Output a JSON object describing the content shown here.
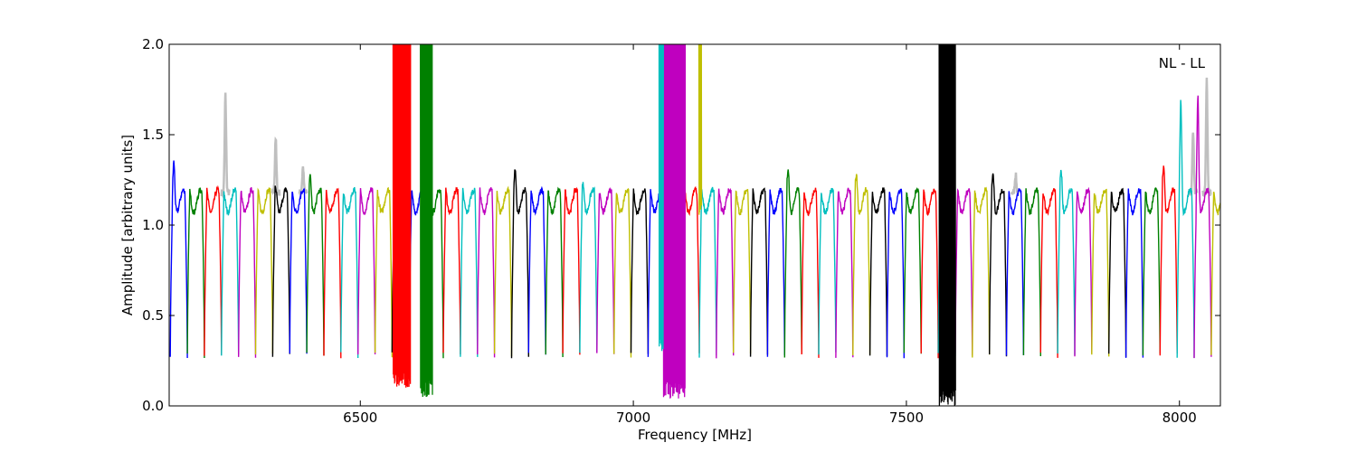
{
  "chart_data": {
    "type": "line",
    "title": "",
    "xlabel": "Frequency [MHz]",
    "ylabel": "Amplitude [arbitrary units]",
    "annotation": "NL - LL",
    "xlim": [
      6150,
      8075
    ],
    "ylim": [
      0.0,
      2.0
    ],
    "x_ticks": [
      6500,
      7000,
      7500,
      8000
    ],
    "x_tick_labels": [
      "6500",
      "7000",
      "7500",
      "8000"
    ],
    "y_ticks": [
      0.0,
      0.5,
      1.0,
      1.5,
      2.0
    ],
    "y_tick_labels": [
      "0.0",
      "0.5",
      "1.0",
      "1.5",
      "2.0"
    ],
    "grid": false,
    "legend": "none",
    "color_cycle": [
      "#0000ff",
      "#008000",
      "#ff0000",
      "#00bfbf",
      "#bf00bf",
      "#bfbf00",
      "#000000"
    ],
    "reference_color": "#bfbfbf",
    "passband_width_mhz": 31.25,
    "passband_start_mhz": 6152,
    "passband_level": 1.18,
    "passband_edge_level": 0.28,
    "reference_spikes": [
      {
        "x": 6253,
        "y": 1.72
      },
      {
        "x": 6345,
        "y": 1.48
      },
      {
        "x": 6395,
        "y": 1.32
      },
      {
        "x": 7700,
        "y": 1.28
      },
      {
        "x": 8050,
        "y": 1.8
      },
      {
        "x": 8025,
        "y": 1.53
      }
    ],
    "rfi_bursts": [
      {
        "x_start": 6560,
        "x_end": 6592,
        "y_min": 0.1,
        "y_max": 2.0,
        "color": "#ff0000"
      },
      {
        "x_start": 6610,
        "x_end": 6632,
        "y_min": 0.05,
        "y_max": 2.0,
        "color": "#008000"
      },
      {
        "x_start": 7055,
        "x_end": 7095,
        "y_min": 0.04,
        "y_max": 2.0,
        "color": "#bf00bf"
      },
      {
        "x_start": 7047,
        "x_end": 7055,
        "y_min": 0.3,
        "y_max": 2.0,
        "color": "#00bfbf"
      },
      {
        "x_start": 7120,
        "x_end": 7125,
        "y_min": 1.05,
        "y_max": 2.0,
        "color": "#bfbf00"
      },
      {
        "x_start": 7560,
        "x_end": 7590,
        "y_min": 0.0,
        "y_max": 2.0,
        "color": "#000000"
      }
    ],
    "peaks": [
      {
        "x": 6170,
        "y": 1.39
      },
      {
        "x": 6345,
        "y": 1.22
      },
      {
        "x": 6415,
        "y": 1.31
      },
      {
        "x": 6555,
        "y": 1.29
      },
      {
        "x": 6780,
        "y": 1.35
      },
      {
        "x": 6920,
        "y": 1.26
      },
      {
        "x": 7060,
        "y": 1.41
      },
      {
        "x": 7290,
        "y": 1.35
      },
      {
        "x": 7420,
        "y": 1.31
      },
      {
        "x": 7555,
        "y": 1.39
      },
      {
        "x": 7655,
        "y": 1.33
      },
      {
        "x": 7785,
        "y": 1.34
      },
      {
        "x": 7985,
        "y": 1.37
      },
      {
        "x": 8018,
        "y": 1.73
      },
      {
        "x": 8047,
        "y": 1.76
      }
    ]
  }
}
